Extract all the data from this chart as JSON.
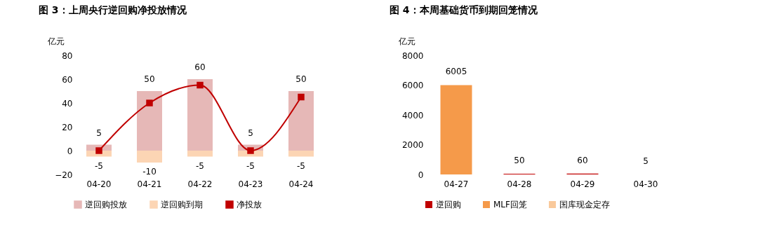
{
  "chart_data": [
    {
      "type": "bar",
      "title": "图 3：上周央行逆回购净投放情况",
      "ylabel": "亿元",
      "categories": [
        "04-20",
        "04-21",
        "04-22",
        "04-23",
        "04-24"
      ],
      "stacked": true,
      "series": [
        {
          "name": "逆回购投放",
          "color": "#e6b8b7",
          "values": [
            5,
            50,
            60,
            5,
            50
          ],
          "value_labels": [
            "5",
            "50",
            "60",
            "5",
            "50"
          ]
        },
        {
          "name": "逆回购到期",
          "color": "#fcd5b4",
          "values": [
            -5,
            -10,
            -5,
            -5,
            -5
          ],
          "value_labels": [
            "-5",
            "-10",
            "-5",
            "-5",
            "-5"
          ]
        },
        {
          "name": "净投放",
          "type": "line",
          "color": "#c00000",
          "values": [
            0,
            40,
            55,
            0,
            45
          ]
        }
      ],
      "ylim": [
        -20,
        80
      ],
      "yticks": [
        -20,
        0,
        20,
        40,
        60,
        80
      ],
      "grid": false,
      "legend": "bottom",
      "marker": "square",
      "line_style": "solid"
    },
    {
      "type": "bar",
      "title": "图 4：本周基础货币到期回笼情况",
      "ylabel": "亿元",
      "categories": [
        "04-27",
        "04-28",
        "04-29",
        "04-30"
      ],
      "stacked": true,
      "series": [
        {
          "name": "逆回购",
          "color": "#c00000",
          "values": [
            5,
            50,
            60,
            5
          ]
        },
        {
          "name": "MLF回笼",
          "color": "#f59a4a",
          "values": [
            6000,
            0,
            0,
            0
          ]
        },
        {
          "name": "国库现金定存",
          "color": "#f9c99b",
          "values": [
            0,
            0,
            0,
            0
          ]
        }
      ],
      "totals": [
        "6005",
        "50",
        "60",
        "5"
      ],
      "ylim": [
        0,
        8000
      ],
      "yticks": [
        0,
        2000,
        4000,
        6000,
        8000
      ],
      "grid": false,
      "legend": "bottom"
    }
  ]
}
